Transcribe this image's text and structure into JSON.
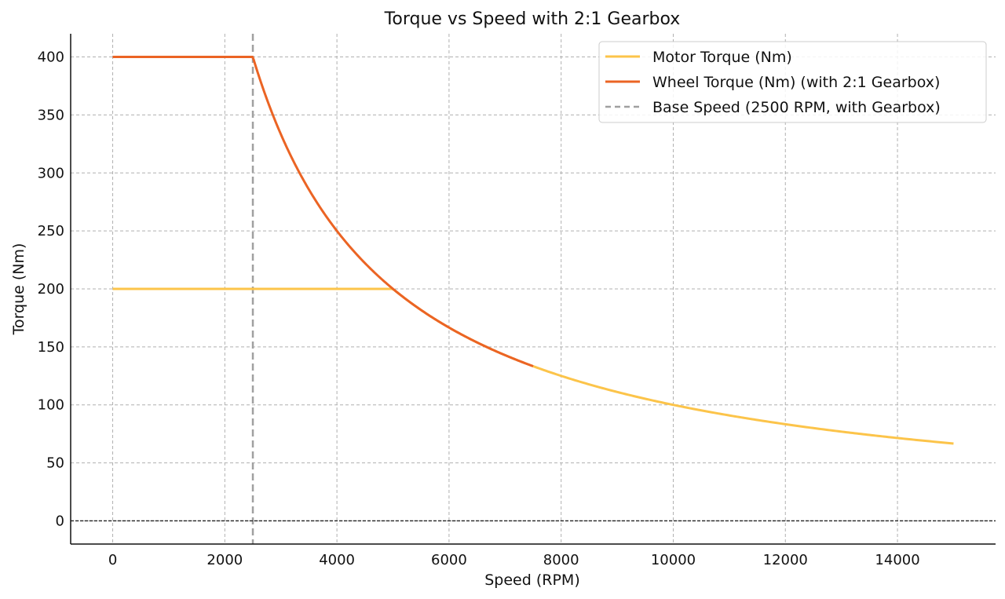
{
  "chart_data": {
    "type": "line",
    "title": "Torque vs Speed with 2:1 Gearbox",
    "xlabel": "Speed (RPM)",
    "ylabel": "Torque (Nm)",
    "xlim": [
      -750,
      15750
    ],
    "ylim": [
      -20,
      420
    ],
    "x_ticks": [
      0,
      2000,
      4000,
      6000,
      8000,
      10000,
      12000,
      14000
    ],
    "y_ticks": [
      0,
      50,
      100,
      150,
      200,
      250,
      300,
      350,
      400
    ],
    "grid": true,
    "legend_position": "top-right",
    "series": [
      {
        "name": "Motor Torque (Nm)",
        "color": "#fcc44a",
        "style": "solid",
        "base_speed": 5000,
        "max_torque": 200,
        "x_max": 15000,
        "sample_points": [
          {
            "x": 0,
            "y": 200
          },
          {
            "x": 5000,
            "y": 200
          },
          {
            "x": 7500,
            "y": 133.3
          },
          {
            "x": 10000,
            "y": 100
          },
          {
            "x": 12000,
            "y": 83.3
          },
          {
            "x": 15000,
            "y": 66.7
          }
        ]
      },
      {
        "name": "Wheel Torque (Nm) (with 2:1 Gearbox)",
        "color": "#eb6424",
        "style": "solid",
        "base_speed": 2500,
        "max_torque": 400,
        "x_max": 7500,
        "sample_points": [
          {
            "x": 0,
            "y": 400
          },
          {
            "x": 2500,
            "y": 400
          },
          {
            "x": 4000,
            "y": 250
          },
          {
            "x": 5000,
            "y": 200
          },
          {
            "x": 6000,
            "y": 166.7
          },
          {
            "x": 7500,
            "y": 133.3
          }
        ]
      }
    ],
    "reference_lines": [
      {
        "name": "Base Speed (2500 RPM, with Gearbox)",
        "orientation": "vertical",
        "value": 2500,
        "color": "#a0a0a0",
        "style": "dashed"
      },
      {
        "name": "zero-line",
        "orientation": "horizontal",
        "value": 0,
        "color": "#222222",
        "style": "dashed"
      }
    ]
  }
}
